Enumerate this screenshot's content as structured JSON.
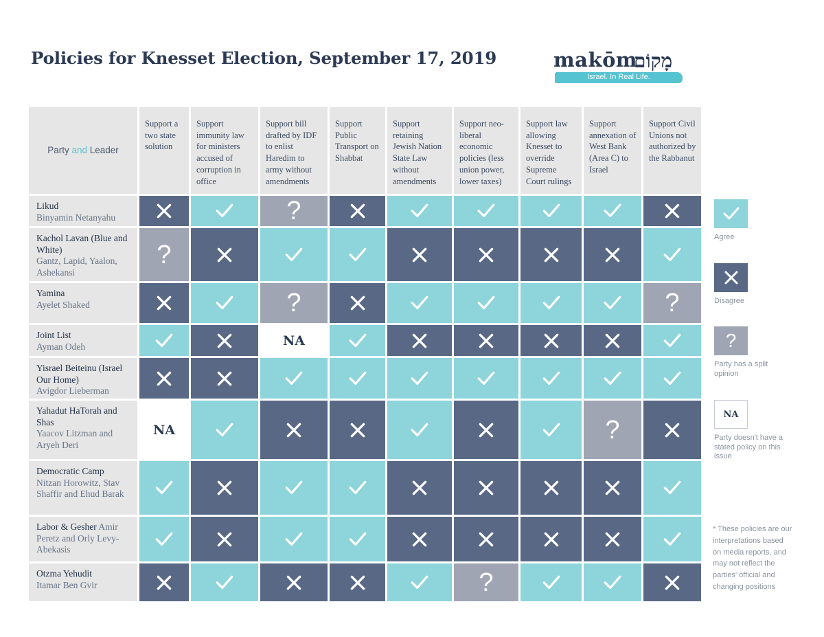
{
  "title": "Policies for Knesset Election, September 17, 2019",
  "logo": {
    "word": "makōm",
    "hebrew": "מָקוֹם",
    "tagline": "Israel. In Real Life."
  },
  "header": {
    "party_label": "Party",
    "and_label": "and",
    "leader_label": "Leader",
    "columns": [
      "Support a two state solution",
      "Support immunity law for ministers accused of corruption in office",
      "Support bill drafted by IDF to enlist Haredim to army without amendments",
      "Support Public Transport on Shabbat",
      "Support retaining Jewish Nation State Law without amendments",
      "Support neo-liberal economic policies (less union power, lower taxes)",
      "Support law allowing Knesset to override Supreme Court rulings",
      "Support annexation of  West Bank (Area C) to Israel",
      "Support Civil Unions not authorized by the Rabbanut"
    ]
  },
  "rows": [
    {
      "party": "Likud",
      "leader": "Binyamin Netanyahu",
      "cells": [
        "disagree",
        "agree",
        "split",
        "disagree",
        "agree",
        "agree",
        "agree",
        "agree",
        "disagree"
      ]
    },
    {
      "party": "Kachol Lavan (Blue and White)",
      "leader": "Gantz, Lapid, Yaalon, Ashekansi",
      "cells": [
        "split",
        "disagree",
        "agree",
        "agree",
        "disagree",
        "disagree",
        "disagree",
        "disagree",
        "agree"
      ]
    },
    {
      "party": "Yamina",
      "leader": "Ayelet Shaked",
      "cells": [
        "disagree",
        "agree",
        "split",
        "disagree",
        "agree",
        "agree",
        "agree",
        "agree",
        "split"
      ]
    },
    {
      "party": "Joint List",
      "leader": "Ayman Odeh",
      "cells": [
        "agree",
        "disagree",
        "na",
        "agree",
        "disagree",
        "disagree",
        "disagree",
        "disagree",
        "agree"
      ]
    },
    {
      "party": "Yisrael Beiteinu (Israel Our Home)",
      "leader": "Avigdor Lieberman",
      "cells": [
        "disagree",
        "disagree",
        "agree",
        "agree",
        "agree",
        "agree",
        "agree",
        "agree",
        "agree"
      ]
    },
    {
      "party": "Yahadut HaTorah and Shas",
      "leader": "Yaacov Litzman and Aryeh Deri",
      "cells": [
        "na",
        "agree",
        "disagree",
        "disagree",
        "agree",
        "disagree",
        "agree",
        "split",
        "disagree"
      ]
    },
    {
      "party": "Democratic Camp",
      "leader": "Nitzan Horowitz, Stav Shaffir and Ehud Barak",
      "cells": [
        "agree",
        "disagree",
        "agree",
        "agree",
        "disagree",
        "disagree",
        "disagree",
        "disagree",
        "agree"
      ]
    },
    {
      "party": "Labor & Gesher",
      "leader": "Amir Peretz and Orly Levy-Abekasis",
      "cells": [
        "agree",
        "disagree",
        "agree",
        "agree",
        "disagree",
        "disagree",
        "disagree",
        "disagree",
        "agree"
      ]
    },
    {
      "party": "Otzma Yehudit",
      "leader": "Itamar Ben Gvir",
      "cells": [
        "disagree",
        "agree",
        "disagree",
        "disagree",
        "agree",
        "split",
        "agree",
        "agree",
        "disagree"
      ]
    }
  ],
  "cell_text": {
    "na": "NA",
    "split": "?"
  },
  "legend": {
    "agree": "Agree",
    "disagree": "Disagree",
    "split": "Party has a split opinion",
    "na_box": "NA",
    "na": "Party doesn't have a stated policy on this issue"
  },
  "note": "* These policies are our interpretations based on media reports, and may not reflect the parties' official and changing positions",
  "colors": {
    "agree": "#8dd4db",
    "disagree": "#596985",
    "split": "#a0a5b4",
    "na": "#ffffff",
    "header_bg": "#e6e6e6",
    "brand_teal": "#56c3d1",
    "brand_navy": "#2c3a54"
  },
  "icons": {
    "agree": "check-icon",
    "disagree": "x-icon",
    "split": "question-icon",
    "na": "na-label"
  }
}
